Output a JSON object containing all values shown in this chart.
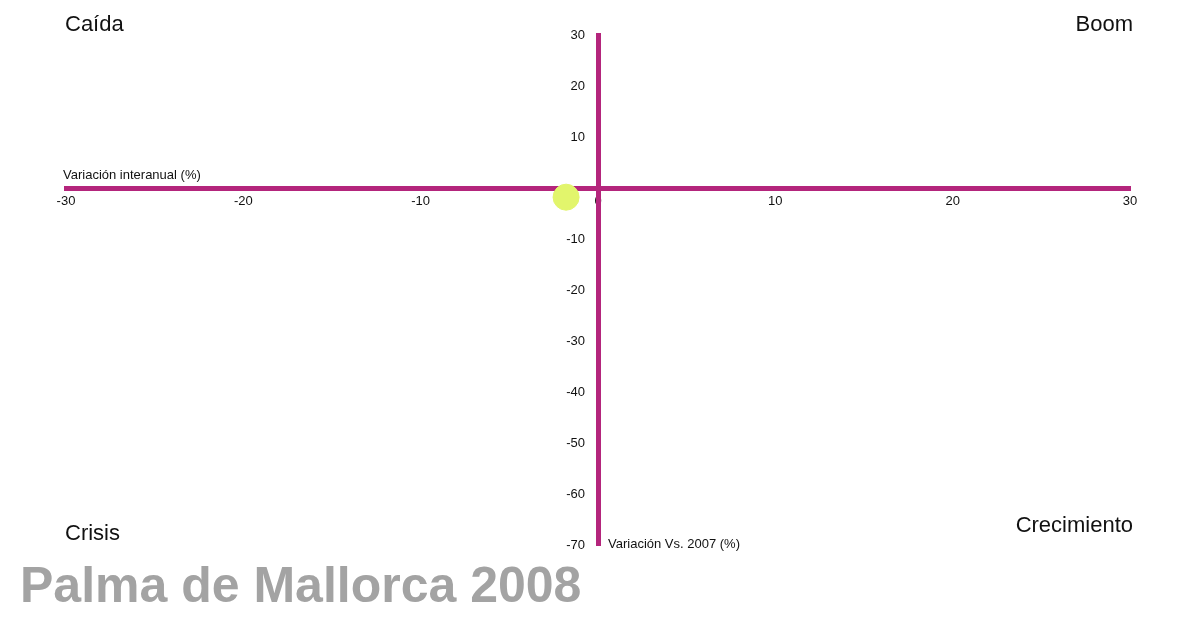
{
  "chart_data": {
    "type": "scatter",
    "title": "Palma de Mallorca 2008",
    "xlabel": "Variación interanual (%)",
    "ylabel": "Variación Vs. 2007 (%)",
    "x": [
      -1.8
    ],
    "values": [
      -1.8
    ],
    "color": "#e2f56c",
    "marker": "circle",
    "xlim": [
      -30,
      30
    ],
    "xticks": [
      -30,
      -20,
      -10,
      0,
      10,
      20,
      30
    ],
    "ylim": [
      -70,
      30
    ],
    "yticks": [
      30,
      20,
      10,
      -10,
      -20,
      -30,
      -40,
      -50,
      -60,
      -70
    ],
    "annotations": [
      "Caída",
      "Boom",
      "Crisis",
      "Crecimiento"
    ],
    "grid": false,
    "legend": false
  }
}
